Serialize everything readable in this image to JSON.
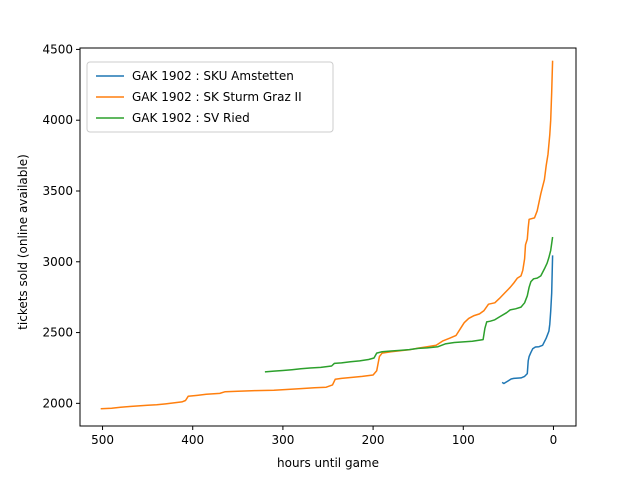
{
  "chart_data": {
    "type": "line",
    "title": "",
    "xlabel": "hours until game",
    "ylabel": "tickets sold (online available)",
    "xlim": [
      525,
      -25
    ],
    "ylim": [
      1840,
      4510
    ],
    "x_inverted": true,
    "xticks": [
      500,
      400,
      300,
      200,
      100,
      0
    ],
    "yticks": [
      2000,
      2500,
      3000,
      3500,
      4000,
      4500
    ],
    "grid": false,
    "legend": "top-left",
    "series": [
      {
        "name": "GAK 1902 : SKU Amstetten",
        "color": "#1f77b4",
        "points": [
          [
            57,
            2148
          ],
          [
            55,
            2140
          ],
          [
            53,
            2148
          ],
          [
            50,
            2160
          ],
          [
            47,
            2172
          ],
          [
            44,
            2176
          ],
          [
            40,
            2178
          ],
          [
            36,
            2180
          ],
          [
            32,
            2190
          ],
          [
            29,
            2210
          ],
          [
            28,
            2300
          ],
          [
            27,
            2330
          ],
          [
            25,
            2360
          ],
          [
            23,
            2385
          ],
          [
            20,
            2398
          ],
          [
            16,
            2400
          ],
          [
            12,
            2410
          ],
          [
            8,
            2460
          ],
          [
            5,
            2510
          ],
          [
            4,
            2560
          ],
          [
            3,
            2650
          ],
          [
            2,
            2780
          ],
          [
            1.5,
            2900
          ],
          [
            1,
            3045
          ]
        ]
      },
      {
        "name": "GAK 1902 : SK Sturm Graz II",
        "color": "#ff7f0e",
        "points": [
          [
            502,
            1962
          ],
          [
            490,
            1966
          ],
          [
            480,
            1972
          ],
          [
            470,
            1978
          ],
          [
            460,
            1982
          ],
          [
            450,
            1986
          ],
          [
            440,
            1990
          ],
          [
            430,
            1996
          ],
          [
            420,
            2004
          ],
          [
            412,
            2010
          ],
          [
            408,
            2020
          ],
          [
            405,
            2050
          ],
          [
            395,
            2056
          ],
          [
            385,
            2064
          ],
          [
            370,
            2070
          ],
          [
            364,
            2082
          ],
          [
            350,
            2086
          ],
          [
            330,
            2090
          ],
          [
            310,
            2092
          ],
          [
            296,
            2098
          ],
          [
            280,
            2104
          ],
          [
            265,
            2110
          ],
          [
            252,
            2114
          ],
          [
            245,
            2130
          ],
          [
            242,
            2170
          ],
          [
            235,
            2176
          ],
          [
            222,
            2184
          ],
          [
            212,
            2190
          ],
          [
            200,
            2200
          ],
          [
            196,
            2230
          ],
          [
            193,
            2330
          ],
          [
            190,
            2355
          ],
          [
            180,
            2364
          ],
          [
            170,
            2372
          ],
          [
            160,
            2378
          ],
          [
            150,
            2390
          ],
          [
            140,
            2400
          ],
          [
            130,
            2410
          ],
          [
            123,
            2440
          ],
          [
            115,
            2460
          ],
          [
            108,
            2480
          ],
          [
            103,
            2530
          ],
          [
            99,
            2570
          ],
          [
            94,
            2600
          ],
          [
            88,
            2620
          ],
          [
            82,
            2632
          ],
          [
            77,
            2655
          ],
          [
            72,
            2700
          ],
          [
            65,
            2710
          ],
          [
            60,
            2740
          ],
          [
            54,
            2780
          ],
          [
            48,
            2820
          ],
          [
            44,
            2850
          ],
          [
            40,
            2885
          ],
          [
            36,
            2900
          ],
          [
            34,
            2940
          ],
          [
            32,
            3020
          ],
          [
            31,
            3120
          ],
          [
            29,
            3160
          ],
          [
            28,
            3240
          ],
          [
            27,
            3300
          ],
          [
            21,
            3310
          ],
          [
            18,
            3360
          ],
          [
            16,
            3420
          ],
          [
            14,
            3480
          ],
          [
            12,
            3530
          ],
          [
            10,
            3580
          ],
          [
            8,
            3680
          ],
          [
            6,
            3760
          ],
          [
            4,
            3900
          ],
          [
            3,
            4000
          ],
          [
            2,
            4200
          ],
          [
            1.5,
            4300
          ],
          [
            1,
            4420
          ]
        ]
      },
      {
        "name": "GAK 1902 : SV Ried",
        "color": "#2ca02c",
        "points": [
          [
            320,
            2222
          ],
          [
            310,
            2228
          ],
          [
            300,
            2232
          ],
          [
            290,
            2238
          ],
          [
            280,
            2244
          ],
          [
            270,
            2250
          ],
          [
            258,
            2254
          ],
          [
            246,
            2264
          ],
          [
            243,
            2282
          ],
          [
            235,
            2286
          ],
          [
            225,
            2294
          ],
          [
            215,
            2300
          ],
          [
            205,
            2310
          ],
          [
            199,
            2320
          ],
          [
            196,
            2355
          ],
          [
            190,
            2365
          ],
          [
            180,
            2370
          ],
          [
            170,
            2374
          ],
          [
            160,
            2380
          ],
          [
            150,
            2388
          ],
          [
            140,
            2392
          ],
          [
            128,
            2400
          ],
          [
            120,
            2420
          ],
          [
            110,
            2430
          ],
          [
            100,
            2434
          ],
          [
            90,
            2438
          ],
          [
            78,
            2450
          ],
          [
            76,
            2530
          ],
          [
            74,
            2575
          ],
          [
            70,
            2580
          ],
          [
            65,
            2590
          ],
          [
            60,
            2610
          ],
          [
            52,
            2640
          ],
          [
            48,
            2660
          ],
          [
            42,
            2668
          ],
          [
            36,
            2680
          ],
          [
            32,
            2710
          ],
          [
            29,
            2760
          ],
          [
            27,
            2820
          ],
          [
            25,
            2860
          ],
          [
            22,
            2880
          ],
          [
            18,
            2885
          ],
          [
            14,
            2900
          ],
          [
            10,
            2950
          ],
          [
            7,
            2990
          ],
          [
            5,
            3030
          ],
          [
            3,
            3080
          ],
          [
            2,
            3130
          ],
          [
            1,
            3175
          ]
        ]
      }
    ]
  }
}
